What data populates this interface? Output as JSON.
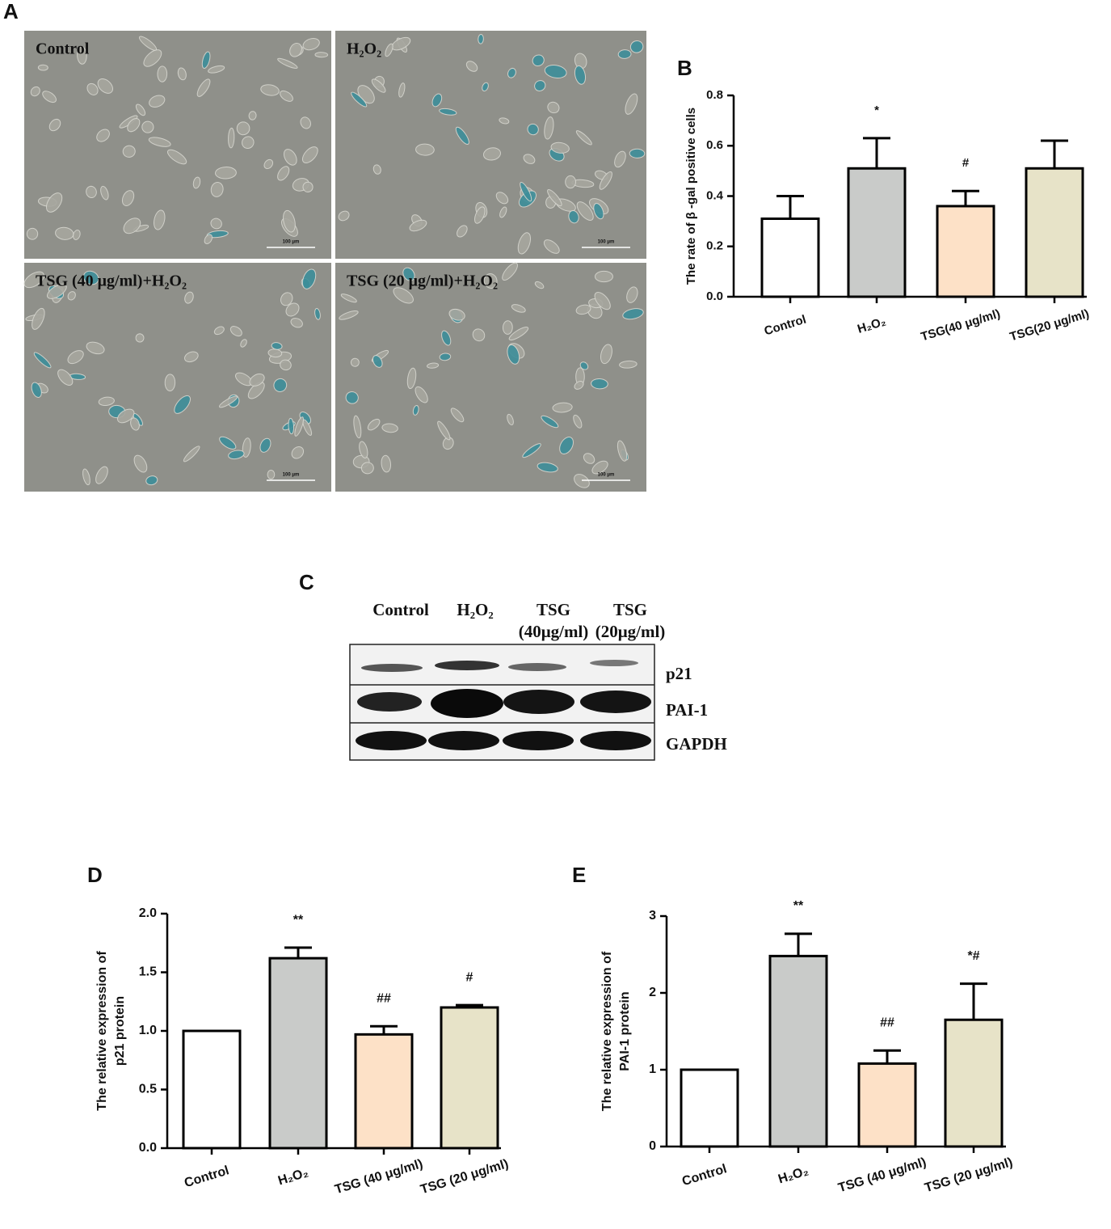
{
  "panels": {
    "A": "A",
    "B": "B",
    "C": "C",
    "D": "D",
    "E": "E"
  },
  "micrographs": {
    "labels": [
      "Control",
      "H₂O₂",
      "TSG (40 μg/ml)+H₂O₂",
      "TSG (20 μg/ml)+H₂O₂"
    ],
    "scale_label": "100 μm"
  },
  "western_blot": {
    "lanes": [
      [
        "Control"
      ],
      [
        "H₂O₂"
      ],
      [
        "TSG",
        "(40μg/ml)"
      ],
      [
        "TSG",
        "(20μg/ml)"
      ]
    ],
    "rows": [
      "p21",
      "PAI-1",
      "GAPDH"
    ]
  },
  "chart_data": [
    {
      "type": "bar",
      "y_label": [
        "The rate of β -gal positive cells"
      ],
      "categories": [
        "Control",
        "H₂O₂",
        "TSG(40 μg/ml)",
        "TSG(20 μg/ml)"
      ],
      "values": [
        0.31,
        0.51,
        0.36,
        0.51
      ],
      "errors": [
        0.09,
        0.12,
        0.06,
        0.11
      ],
      "annotations": [
        null,
        "*",
        "#",
        null
      ],
      "colors": [
        "#ffffff",
        "#c9cbc9",
        "#fde1c7",
        "#e7e3c8"
      ],
      "ylim": [
        0,
        0.8
      ],
      "yticks": [
        {
          "value": 0,
          "label": "0.0"
        },
        0.2,
        0.4,
        0.6,
        0.8
      ]
    },
    {
      "type": "bar",
      "y_label": [
        "The relative expression of",
        "p21  protein"
      ],
      "categories": [
        "Control",
        "H₂O₂",
        "TSG (40 μg/ml)",
        "TSG (20 μg/ml)"
      ],
      "values": [
        1.0,
        1.62,
        0.97,
        1.2
      ],
      "errors": [
        null,
        0.09,
        0.07,
        0.02
      ],
      "annotations": [
        null,
        "**",
        "##",
        "#"
      ],
      "colors": [
        "#ffffff",
        "#c9cbc9",
        "#fde1c7",
        "#e7e3c8"
      ],
      "ylim": [
        0,
        2
      ],
      "yticks": [
        {
          "value": 0,
          "label": "0.0"
        },
        0.5,
        {
          "value": 1,
          "label": "1.0"
        },
        1.5,
        {
          "value": 2,
          "label": "2.0"
        }
      ]
    },
    {
      "type": "bar",
      "y_label": [
        "The relative expression of",
        "PAI-1  protein"
      ],
      "categories": [
        "Control",
        "H₂O₂",
        "TSG (40 μg/ml)",
        "TSG (20 μg/ml)"
      ],
      "values": [
        1.0,
        2.48,
        1.08,
        1.65
      ],
      "errors": [
        null,
        0.29,
        0.17,
        0.47
      ],
      "annotations": [
        null,
        "**",
        "##",
        "*#"
      ],
      "colors": [
        "#ffffff",
        "#c9cbc9",
        "#fde1c7",
        "#e7e3c8"
      ],
      "ylim": [
        0,
        3
      ],
      "yticks": [
        0,
        1,
        2,
        3
      ]
    }
  ]
}
